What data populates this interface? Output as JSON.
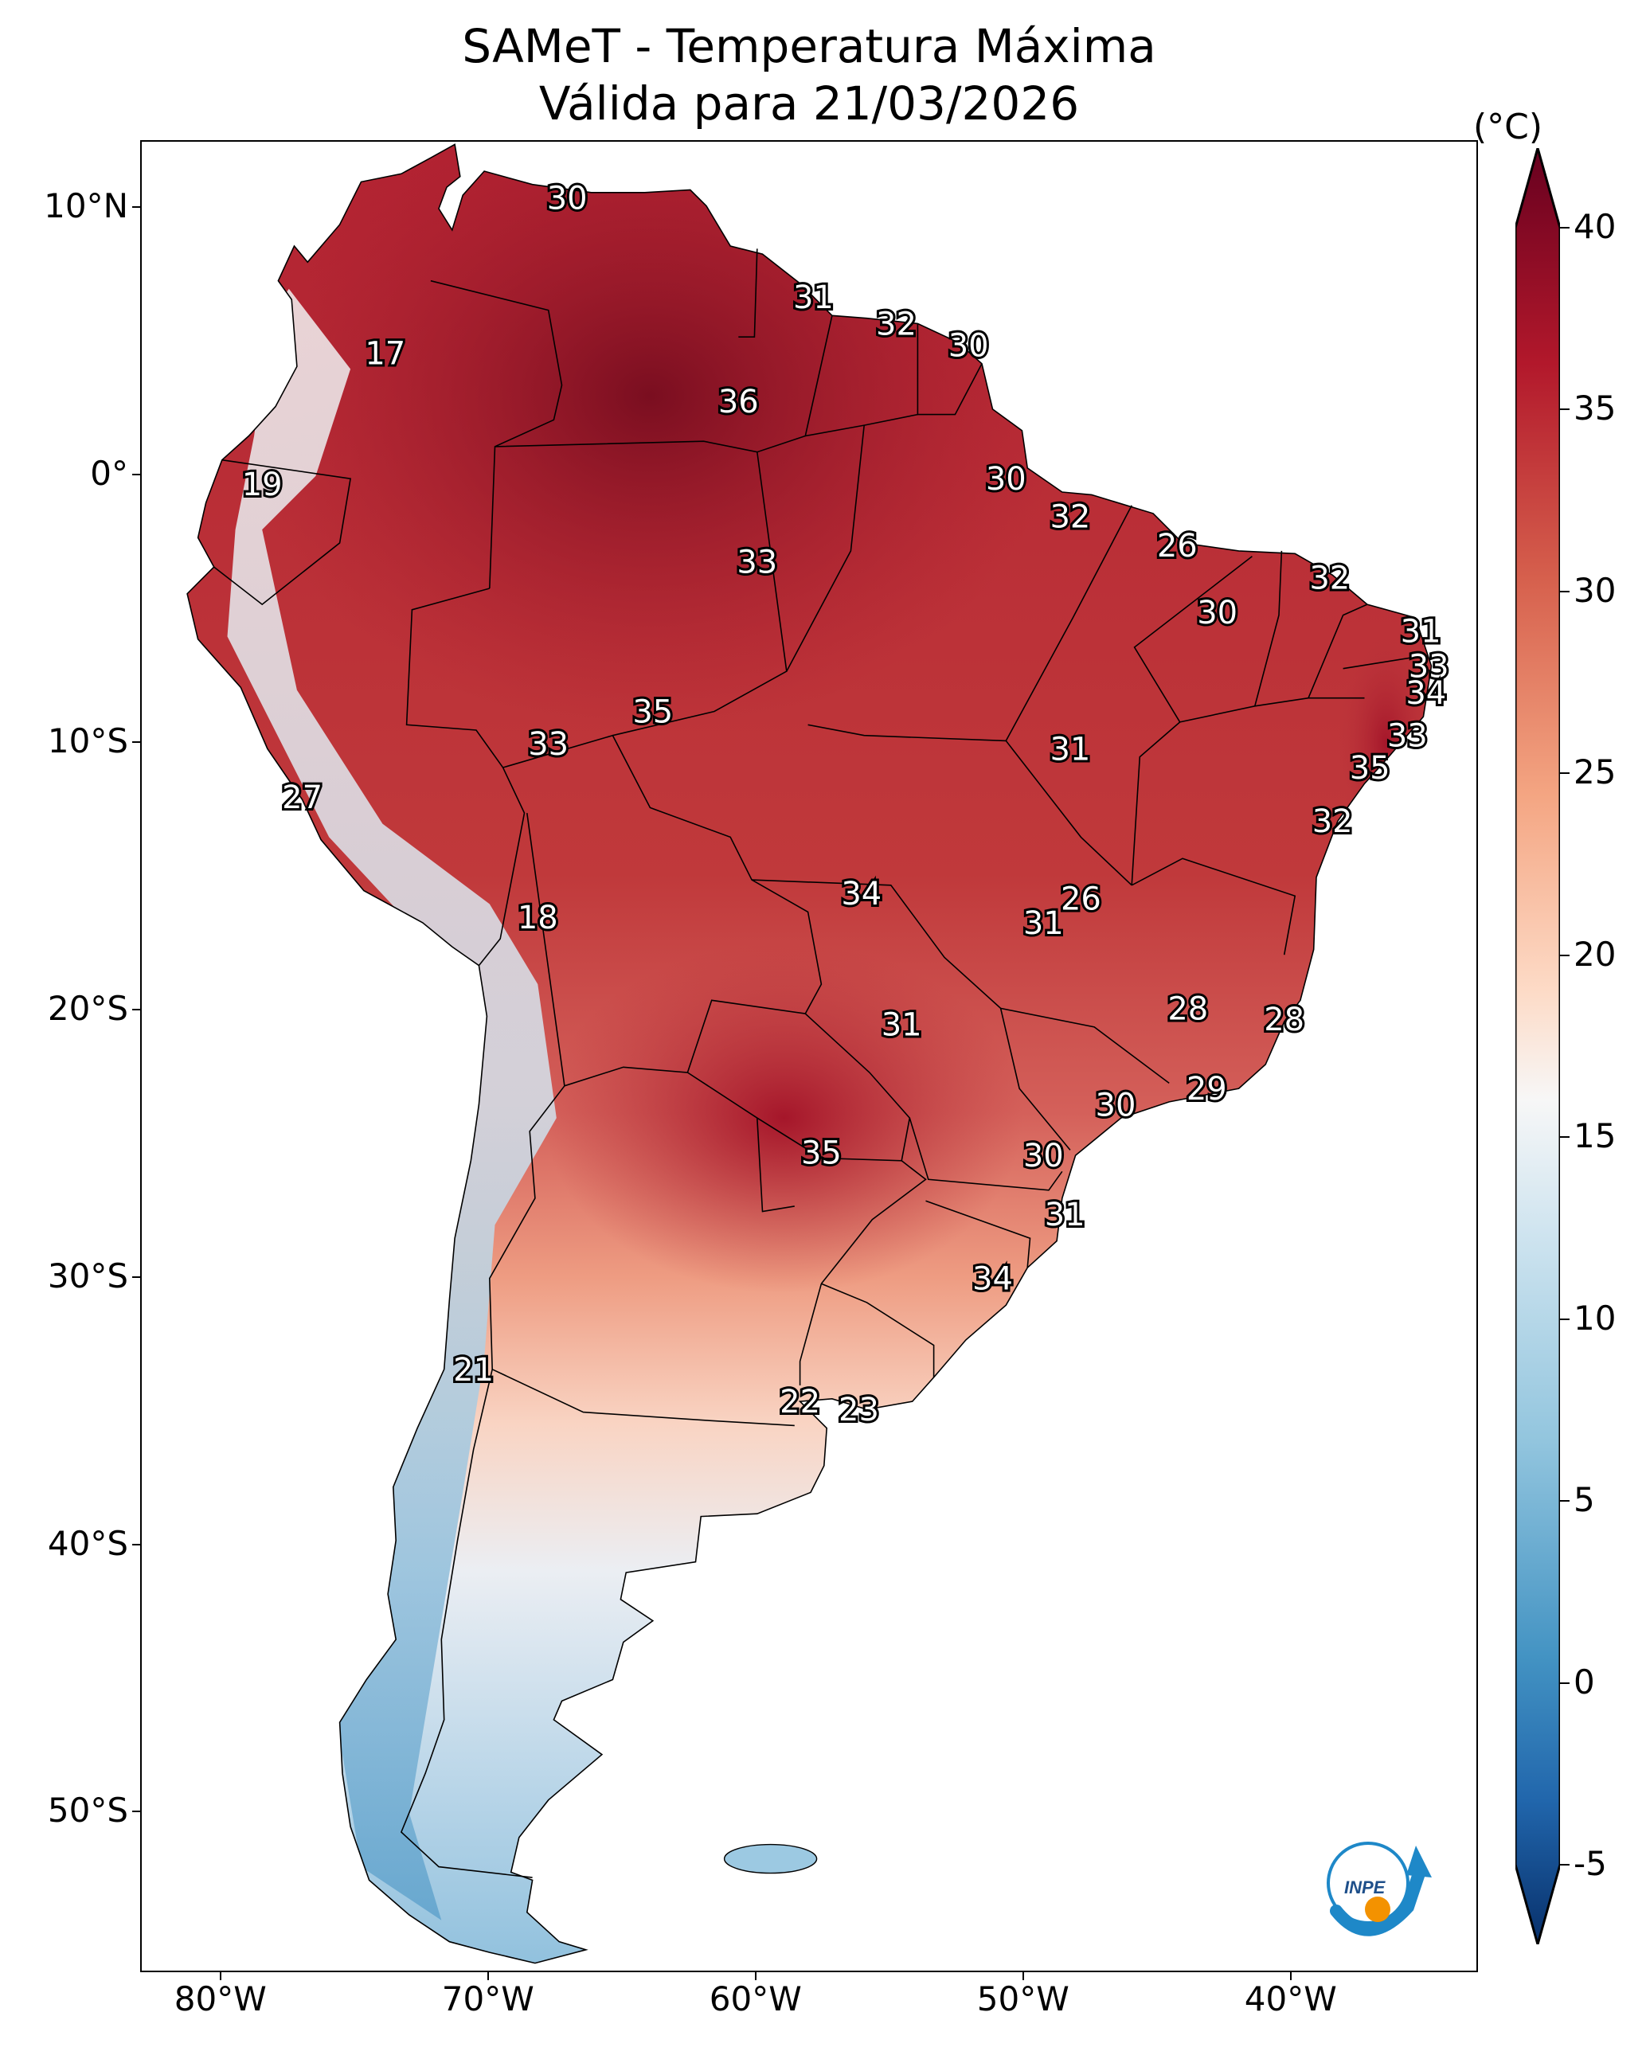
{
  "title": {
    "line1": "SAMeT - Temperatura Máxima",
    "line2": "Válida para 21/03/2026"
  },
  "axes": {
    "lat_labels": [
      "10°N",
      "0°",
      "10°S",
      "20°S",
      "30°S",
      "40°S",
      "50°S"
    ],
    "lat_values": [
      10,
      0,
      -10,
      -20,
      -30,
      -40,
      -50
    ],
    "lon_labels": [
      "80°W",
      "70°W",
      "60°W",
      "50°W",
      "40°W"
    ],
    "lon_values": [
      -80,
      -70,
      -60,
      -50,
      -40
    ],
    "lat_range": [
      -56,
      12.5
    ],
    "lon_range": [
      -83,
      -33
    ]
  },
  "colorbar": {
    "unit": "(°C)",
    "ticks": [
      "40",
      "35",
      "30",
      "25",
      "20",
      "15",
      "10",
      "5",
      "0",
      "-5"
    ],
    "tick_values": [
      40,
      35,
      30,
      25,
      20,
      15,
      10,
      5,
      0,
      -5
    ],
    "range": [
      -5,
      40
    ],
    "extend": "both",
    "colors": [
      "#08306b",
      "#2166ac",
      "#4393c3",
      "#92c5de",
      "#d1e5f0",
      "#f7f7f7",
      "#fddbc7",
      "#f4a582",
      "#d6604d",
      "#b2182b",
      "#67001f"
    ]
  },
  "station_values": [
    {
      "label": "30",
      "lon": -67.1,
      "lat": 10.4
    },
    {
      "label": "31",
      "lon": -57.9,
      "lat": 6.7
    },
    {
      "label": "32",
      "lon": -54.8,
      "lat": 5.7
    },
    {
      "label": "30",
      "lon": -52.1,
      "lat": 4.9
    },
    {
      "label": "17",
      "lon": -73.9,
      "lat": 4.6
    },
    {
      "label": "36",
      "lon": -60.7,
      "lat": 2.8
    },
    {
      "label": "19",
      "lon": -78.5,
      "lat": -0.3
    },
    {
      "label": "30",
      "lon": -50.7,
      "lat": -0.1
    },
    {
      "label": "32",
      "lon": -48.3,
      "lat": -1.5
    },
    {
      "label": "33",
      "lon": -60.0,
      "lat": -3.2
    },
    {
      "label": "26",
      "lon": -44.3,
      "lat": -2.6
    },
    {
      "label": "32",
      "lon": -38.6,
      "lat": -3.8
    },
    {
      "label": "30",
      "lon": -42.8,
      "lat": -5.1
    },
    {
      "label": "31",
      "lon": -35.2,
      "lat": -5.8
    },
    {
      "label": "33",
      "lon": -34.9,
      "lat": -7.1
    },
    {
      "label": "34",
      "lon": -35.0,
      "lat": -8.1
    },
    {
      "label": "35",
      "lon": -63.9,
      "lat": -8.8
    },
    {
      "label": "33",
      "lon": -67.8,
      "lat": -10.0
    },
    {
      "label": "31",
      "lon": -48.3,
      "lat": -10.2
    },
    {
      "label": "33",
      "lon": -35.7,
      "lat": -9.7
    },
    {
      "label": "35",
      "lon": -37.1,
      "lat": -10.9
    },
    {
      "label": "27",
      "lon": -77.0,
      "lat": -12.0
    },
    {
      "label": "32",
      "lon": -38.5,
      "lat": -12.9
    },
    {
      "label": "34",
      "lon": -56.1,
      "lat": -15.6
    },
    {
      "label": "26",
      "lon": -47.9,
      "lat": -15.8
    },
    {
      "label": "31",
      "lon": -49.3,
      "lat": -16.7
    },
    {
      "label": "18",
      "lon": -68.2,
      "lat": -16.5
    },
    {
      "label": "28",
      "lon": -43.9,
      "lat": -19.9
    },
    {
      "label": "28",
      "lon": -40.3,
      "lat": -20.3
    },
    {
      "label": "31",
      "lon": -54.6,
      "lat": -20.5
    },
    {
      "label": "29",
      "lon": -43.2,
      "lat": -22.9
    },
    {
      "label": "30",
      "lon": -46.6,
      "lat": -23.5
    },
    {
      "label": "35",
      "lon": -57.6,
      "lat": -25.3
    },
    {
      "label": "30",
      "lon": -49.3,
      "lat": -25.4
    },
    {
      "label": "31",
      "lon": -48.5,
      "lat": -27.6
    },
    {
      "label": "34",
      "lon": -51.2,
      "lat": -30.0
    },
    {
      "label": "21",
      "lon": -70.6,
      "lat": -33.4
    },
    {
      "label": "22",
      "lon": -58.4,
      "lat": -34.6
    },
    {
      "label": "23",
      "lon": -56.2,
      "lat": -34.9
    }
  ],
  "logo": {
    "text": "INPE"
  }
}
